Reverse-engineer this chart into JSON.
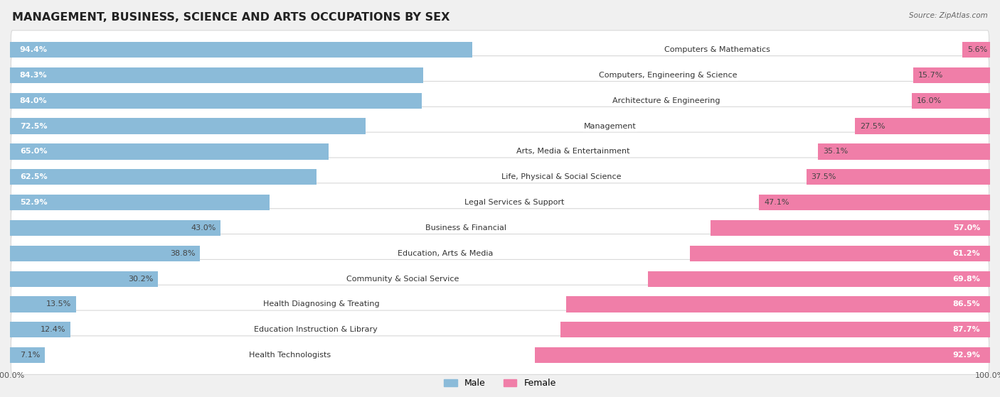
{
  "title": "MANAGEMENT, BUSINESS, SCIENCE AND ARTS OCCUPATIONS BY SEX",
  "source": "Source: ZipAtlas.com",
  "categories": [
    "Computers & Mathematics",
    "Computers, Engineering & Science",
    "Architecture & Engineering",
    "Management",
    "Arts, Media & Entertainment",
    "Life, Physical & Social Science",
    "Legal Services & Support",
    "Business & Financial",
    "Education, Arts & Media",
    "Community & Social Service",
    "Health Diagnosing & Treating",
    "Education Instruction & Library",
    "Health Technologists"
  ],
  "male_pct": [
    94.4,
    84.3,
    84.0,
    72.5,
    65.0,
    62.5,
    52.9,
    43.0,
    38.8,
    30.2,
    13.5,
    12.4,
    7.1
  ],
  "female_pct": [
    5.6,
    15.7,
    16.0,
    27.5,
    35.1,
    37.5,
    47.1,
    57.0,
    61.2,
    69.8,
    86.5,
    87.7,
    92.9
  ],
  "male_color": "#8bbbd9",
  "female_color": "#f07ea8",
  "bg_color": "#f0f0f0",
  "row_bg_even": "#ffffff",
  "row_bg_odd": "#f7f7f7",
  "row_border": "#d8d8d8",
  "title_fontsize": 11.5,
  "label_fontsize": 8.0,
  "source_fontsize": 7.5,
  "legend_fontsize": 9,
  "axis_label_fontsize": 8
}
